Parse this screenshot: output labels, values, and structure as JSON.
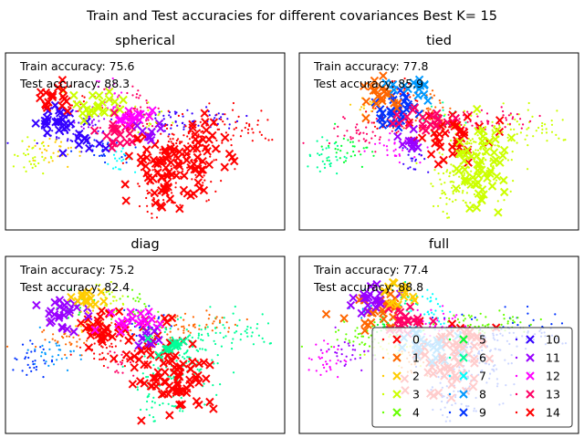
{
  "figure": {
    "suptitle": "Train and Test accuracies for different covariances Best K= 15"
  },
  "chart_data": [
    {
      "type": "scatter",
      "title": "spherical",
      "train_label": "Train accuracy: 75.6",
      "test_label": "Test accuracy: 88.3",
      "train_accuracy": 75.6,
      "test_accuracy": 88.3,
      "axes_visible": false,
      "grid": false
    },
    {
      "type": "scatter",
      "title": "tied",
      "train_label": "Train accuracy: 77.8",
      "test_label": "Test accuracy: 85.9",
      "train_accuracy": 77.8,
      "test_accuracy": 85.9,
      "axes_visible": false,
      "grid": false
    },
    {
      "type": "scatter",
      "title": "diag",
      "train_label": "Train accuracy: 75.2",
      "test_label": "Test accuracy: 82.4",
      "train_accuracy": 75.2,
      "test_accuracy": 82.4,
      "axes_visible": false,
      "grid": false
    },
    {
      "type": "scatter",
      "title": "full",
      "train_label": "Train accuracy: 77.4",
      "test_label": "Test accuracy: 88.8",
      "train_accuracy": 77.4,
      "test_accuracy": 88.8,
      "axes_visible": false,
      "grid": false,
      "legend": {
        "placement": "lower-right",
        "ncol": 3,
        "entries": [
          "0",
          "1",
          "2",
          "3",
          "4",
          "5",
          "6",
          "7",
          "8",
          "9",
          "10",
          "11",
          "12",
          "13",
          "14"
        ]
      }
    }
  ],
  "colors": [
    "#ff0000",
    "#ff5e00",
    "#ffbf00",
    "#ddff00",
    "#7fff00",
    "#1fff00",
    "#00ff3f",
    "#00ffa0",
    "#00fefe",
    "#009ffe",
    "#003ffe",
    "#2000ff",
    "#7f00ff",
    "#df00ff",
    "#ff00bf",
    "#ff005f"
  ],
  "cluster_color_index": [
    0,
    1,
    2,
    3,
    4,
    5,
    6,
    7,
    8,
    9,
    10,
    11,
    12,
    13,
    14
  ]
}
